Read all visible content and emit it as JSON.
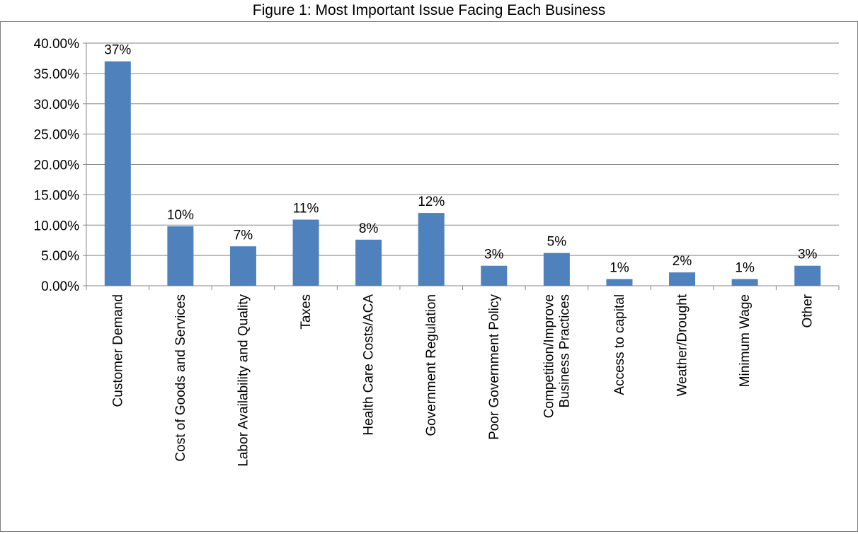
{
  "chart_data": {
    "type": "bar",
    "title": "Figure 1: Most Important Issue Facing Each Business",
    "xlabel": "",
    "ylabel": "",
    "ylim": [
      0,
      0.4
    ],
    "yticks": [
      "0.00%",
      "5.00%",
      "10.00%",
      "15.00%",
      "20.00%",
      "25.00%",
      "30.00%",
      "35.00%",
      "40.00%"
    ],
    "grid": true,
    "legend": "none",
    "categories": [
      [
        "Customer Demand"
      ],
      [
        "Cost of Goods and Services"
      ],
      [
        "Labor Availability and Quality"
      ],
      [
        "Taxes"
      ],
      [
        "Health Care Costs/ACA"
      ],
      [
        "Government Regulation"
      ],
      [
        "Poor Government Policy"
      ],
      [
        "Competition/Improve",
        "Business Practices"
      ],
      [
        "Access to capital"
      ],
      [
        "Weather/Drought"
      ],
      [
        "Minimum Wage"
      ],
      [
        "Other"
      ]
    ],
    "values": [
      0.37,
      0.098,
      0.065,
      0.109,
      0.076,
      0.12,
      0.033,
      0.054,
      0.011,
      0.022,
      0.011,
      0.033
    ],
    "data_labels": [
      "37%",
      "10%",
      "7%",
      "11%",
      "8%",
      "12%",
      "3%",
      "5%",
      "1%",
      "2%",
      "1%",
      "3%"
    ],
    "colors": {
      "bar": "#4f81bd",
      "grid": "#868686",
      "axis": "#868686"
    }
  }
}
